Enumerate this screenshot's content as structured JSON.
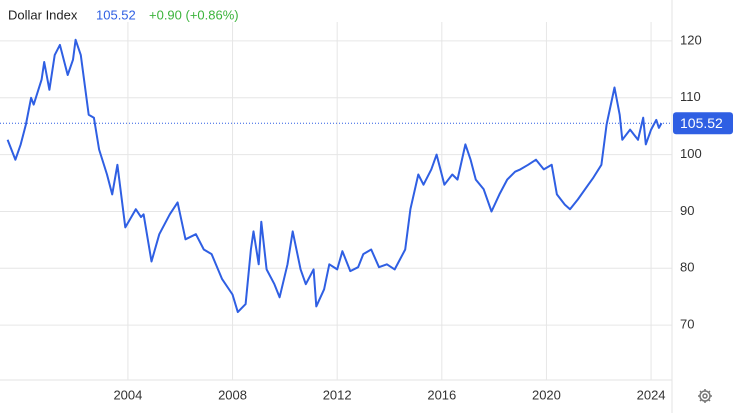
{
  "chart_data": {
    "type": "line",
    "title": "Dollar Index",
    "current_value": 105.52,
    "change": "+0.90 (+0.86%)",
    "x": [
      1999.4,
      1999.7,
      1999.9,
      2000.1,
      2000.3,
      2000.4,
      2000.7,
      2000.8,
      2001.0,
      2001.2,
      2001.4,
      2001.7,
      2001.9,
      2002.0,
      2002.2,
      2002.5,
      2002.7,
      2002.9,
      2003.2,
      2003.4,
      2003.6,
      2003.9,
      2004.3,
      2004.5,
      2004.6,
      2004.9,
      2005.2,
      2005.6,
      2005.9,
      2006.2,
      2006.6,
      2006.9,
      2007.2,
      2007.6,
      2008.0,
      2008.2,
      2008.5,
      2008.7,
      2008.8,
      2009.0,
      2009.1,
      2009.3,
      2009.6,
      2009.8,
      2010.1,
      2010.3,
      2010.6,
      2010.8,
      2011.1,
      2011.2,
      2011.5,
      2011.7,
      2012.0,
      2012.2,
      2012.5,
      2012.8,
      2013.0,
      2013.3,
      2013.6,
      2013.9,
      2014.2,
      2014.6,
      2014.8,
      2015.1,
      2015.3,
      2015.6,
      2015.8,
      2016.1,
      2016.4,
      2016.6,
      2016.9,
      2017.1,
      2017.3,
      2017.6,
      2017.9,
      2018.2,
      2018.5,
      2018.8,
      2019.0,
      2019.3,
      2019.6,
      2019.9,
      2020.2,
      2020.4,
      2020.7,
      2020.9,
      2021.2,
      2021.6,
      2021.8,
      2022.1,
      2022.3,
      2022.6,
      2022.8,
      2022.9,
      2023.2,
      2023.5,
      2023.7,
      2023.8,
      2024.0,
      2024.2,
      2024.3,
      2024.4
    ],
    "series": [
      {
        "name": "Dollar Index",
        "color": "#2f5fe3",
        "values": [
          102.6,
          99.1,
          101.8,
          105.3,
          110,
          108.8,
          113.2,
          116.3,
          111.4,
          117.5,
          119.3,
          114,
          116.7,
          120.2,
          117.5,
          107,
          106.5,
          100.9,
          96.5,
          93,
          98.2,
          87.2,
          90.4,
          89,
          89.5,
          81.2,
          86,
          89.5,
          91.6,
          85.1,
          86,
          83.3,
          82.5,
          78.1,
          75.4,
          72.3,
          73.7,
          83.3,
          86.5,
          80.7,
          88.2,
          79.8,
          77.2,
          74.9,
          80.7,
          86.5,
          79.8,
          77.2,
          79.8,
          73.3,
          76.3,
          80.7,
          79.8,
          83,
          79.5,
          80.2,
          82.5,
          83.3,
          80.2,
          80.7,
          79.8,
          83.3,
          90.4,
          96.5,
          94.7,
          97.4,
          100,
          94.7,
          96.5,
          95.6,
          101.8,
          99.1,
          95.6,
          93.9,
          90,
          93,
          95.6,
          97,
          97.4,
          98.2,
          99.1,
          97.4,
          98.2,
          93,
          91.2,
          90.4,
          92.1,
          94.7,
          96,
          98.2,
          105.3,
          111.8,
          107,
          102.6,
          104.4,
          102.6,
          106.5,
          101.8,
          104.4,
          106.1,
          104.7,
          105.52
        ]
      }
    ],
    "xlim": [
      1999.11,
      2024.8
    ],
    "xticks": [
      2004,
      2008,
      2012,
      2016,
      2020,
      2024
    ],
    "ylim": [
      60.35,
      127.2
    ],
    "yticks": [
      70,
      80,
      90,
      100,
      110,
      120
    ],
    "grid": true,
    "header_value_color": "#2f5fe3",
    "change_color": "#3cb43c"
  }
}
